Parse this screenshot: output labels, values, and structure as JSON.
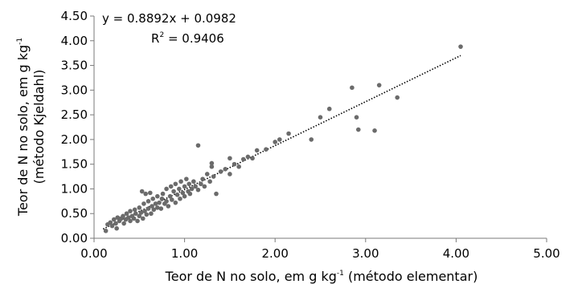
{
  "chart_data": {
    "type": "scatter",
    "title": "",
    "xlabel": "Teor de N no solo, em g kg",
    "xlabel_sup": "-1",
    "xlabel_suffix": " (método elementar)",
    "ylabel_line1": "Teor de N no solo, em g kg",
    "ylabel_sup": "-1",
    "ylabel_line2": "(método Kjeldahl)",
    "xlim": [
      0,
      5
    ],
    "ylim": [
      0,
      4.5
    ],
    "x_ticks": [
      "0.00",
      "1.00",
      "2.00",
      "3.00",
      "4.00",
      "5.00"
    ],
    "y_ticks": [
      "0.00",
      "0.50",
      "1.00",
      "1.50",
      "2.00",
      "2.50",
      "3.00",
      "3.50",
      "4.00",
      "4.50"
    ],
    "grid": false,
    "marker_color": "#6b6b6b",
    "trendline": {
      "slope": 0.8892,
      "intercept": 0.0982,
      "x_range": [
        0.1,
        4.05
      ],
      "style": "dotted",
      "equation": "y = 0.8892x + 0.0982",
      "r2_label": "R",
      "r2_sup": "2",
      "r2_value": " = 0.9406"
    },
    "points": [
      [
        0.13,
        0.15
      ],
      [
        0.15,
        0.28
      ],
      [
        0.18,
        0.32
      ],
      [
        0.2,
        0.25
      ],
      [
        0.22,
        0.38
      ],
      [
        0.24,
        0.3
      ],
      [
        0.25,
        0.2
      ],
      [
        0.26,
        0.42
      ],
      [
        0.28,
        0.35
      ],
      [
        0.3,
        0.4
      ],
      [
        0.32,
        0.45
      ],
      [
        0.33,
        0.3
      ],
      [
        0.35,
        0.38
      ],
      [
        0.36,
        0.5
      ],
      [
        0.38,
        0.42
      ],
      [
        0.4,
        0.35
      ],
      [
        0.4,
        0.55
      ],
      [
        0.42,
        0.45
      ],
      [
        0.44,
        0.4
      ],
      [
        0.45,
        0.58
      ],
      [
        0.46,
        0.5
      ],
      [
        0.48,
        0.35
      ],
      [
        0.5,
        0.45
      ],
      [
        0.5,
        0.62
      ],
      [
        0.52,
        0.52
      ],
      [
        0.53,
        0.95
      ],
      [
        0.54,
        0.4
      ],
      [
        0.55,
        0.7
      ],
      [
        0.56,
        0.55
      ],
      [
        0.57,
        0.9
      ],
      [
        0.58,
        0.48
      ],
      [
        0.6,
        0.6
      ],
      [
        0.6,
        0.75
      ],
      [
        0.62,
        0.92
      ],
      [
        0.63,
        0.5
      ],
      [
        0.64,
        0.65
      ],
      [
        0.65,
        0.8
      ],
      [
        0.66,
        0.58
      ],
      [
        0.68,
        0.7
      ],
      [
        0.7,
        0.62
      ],
      [
        0.7,
        0.85
      ],
      [
        0.72,
        0.72
      ],
      [
        0.74,
        0.6
      ],
      [
        0.75,
        0.8
      ],
      [
        0.76,
        0.9
      ],
      [
        0.78,
        0.7
      ],
      [
        0.8,
        0.75
      ],
      [
        0.8,
        1.0
      ],
      [
        0.82,
        0.65
      ],
      [
        0.84,
        0.85
      ],
      [
        0.85,
        1.05
      ],
      [
        0.86,
        0.78
      ],
      [
        0.88,
        0.95
      ],
      [
        0.9,
        0.72
      ],
      [
        0.9,
        1.1
      ],
      [
        0.92,
        0.88
      ],
      [
        0.94,
        1.0
      ],
      [
        0.95,
        0.8
      ],
      [
        0.96,
        1.15
      ],
      [
        0.98,
        0.92
      ],
      [
        1.0,
        1.05
      ],
      [
        1.0,
        0.85
      ],
      [
        1.02,
        1.2
      ],
      [
        1.04,
        0.95
      ],
      [
        1.05,
        1.1
      ],
      [
        1.06,
        0.9
      ],
      [
        1.08,
        1.0
      ],
      [
        1.1,
        1.15
      ],
      [
        1.12,
        1.05
      ],
      [
        1.15,
        1.88
      ],
      [
        1.15,
        0.98
      ],
      [
        1.18,
        1.1
      ],
      [
        1.2,
        1.2
      ],
      [
        1.22,
        1.05
      ],
      [
        1.25,
        1.3
      ],
      [
        1.28,
        1.15
      ],
      [
        1.3,
        1.52
      ],
      [
        1.3,
        1.45
      ],
      [
        1.32,
        1.25
      ],
      [
        1.35,
        0.9
      ],
      [
        1.4,
        1.35
      ],
      [
        1.45,
        1.4
      ],
      [
        1.5,
        1.62
      ],
      [
        1.5,
        1.3
      ],
      [
        1.55,
        1.5
      ],
      [
        1.6,
        1.45
      ],
      [
        1.65,
        1.6
      ],
      [
        1.7,
        1.65
      ],
      [
        1.75,
        1.62
      ],
      [
        1.8,
        1.78
      ],
      [
        1.9,
        1.8
      ],
      [
        2.0,
        1.95
      ],
      [
        2.05,
        2.0
      ],
      [
        2.15,
        2.12
      ],
      [
        2.4,
        2.0
      ],
      [
        2.5,
        2.45
      ],
      [
        2.6,
        2.62
      ],
      [
        2.85,
        3.05
      ],
      [
        2.9,
        2.45
      ],
      [
        2.92,
        2.2
      ],
      [
        3.1,
        2.18
      ],
      [
        3.15,
        3.1
      ],
      [
        3.35,
        2.85
      ],
      [
        4.05,
        3.88
      ]
    ]
  }
}
